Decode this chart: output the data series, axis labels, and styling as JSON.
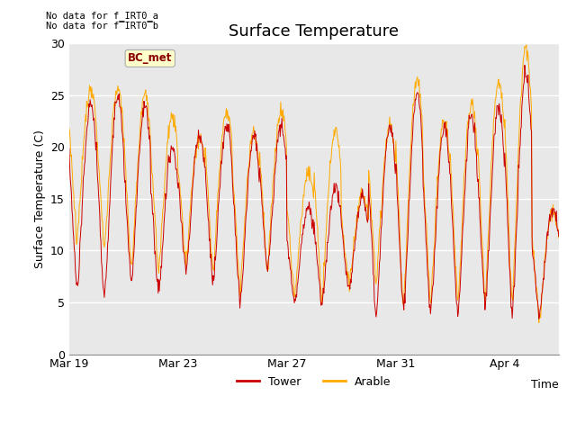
{
  "title": "Surface Temperature",
  "ylabel": "Surface Temperature (C)",
  "xlabel": "Time",
  "bc_met_label": "BC_met",
  "legend_entries": [
    "Tower",
    "Arable"
  ],
  "tower_color": "#cc0000",
  "arable_color": "#ffaa00",
  "ylim": [
    0,
    30
  ],
  "yticks": [
    0,
    5,
    10,
    15,
    20,
    25,
    30
  ],
  "plot_bg_color": "#e8e8e8",
  "fig_bg_color": "#ffffff",
  "grid_color": "#ffffff",
  "x_tick_labels": [
    "Mar 19",
    "Mar 23",
    "Mar 27",
    "Mar 31",
    "Apr 4"
  ],
  "x_tick_positions": [
    0,
    4,
    8,
    12,
    16
  ],
  "xlim": [
    0,
    18
  ],
  "title_fontsize": 13,
  "axis_label_fontsize": 9,
  "tick_fontsize": 9,
  "nodata_line1": "No data for f_IRT0_a",
  "nodata_line2": "No data for f̅IRT0̅b"
}
